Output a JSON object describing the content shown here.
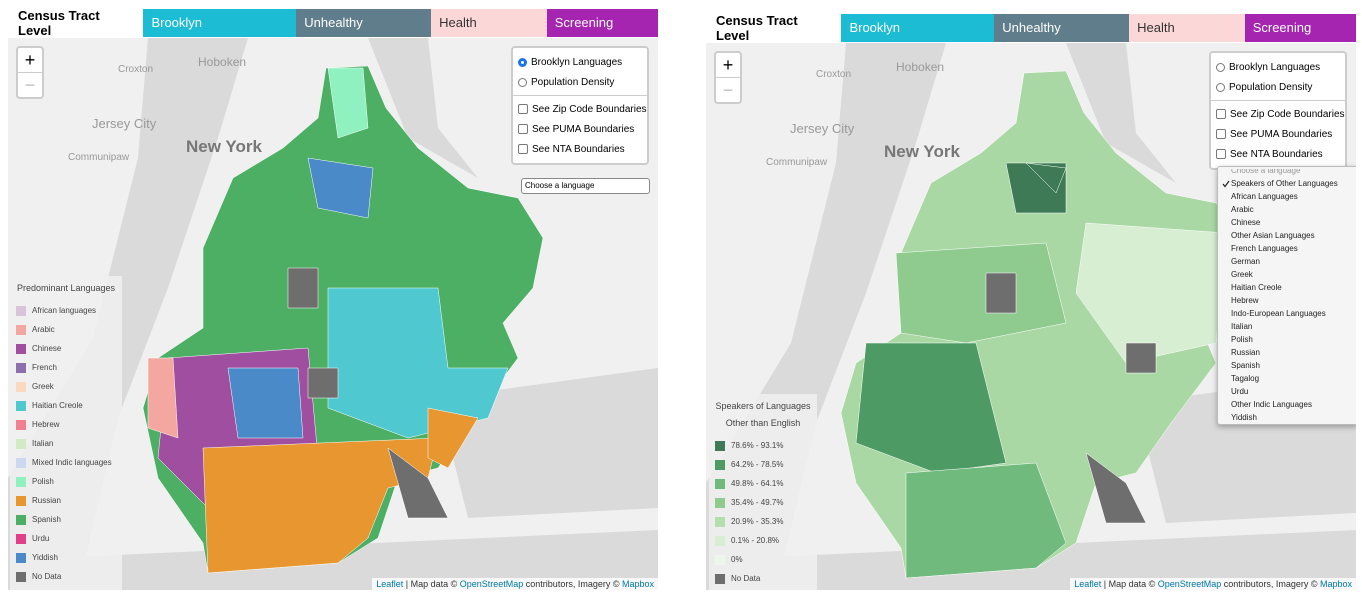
{
  "panels": [
    {
      "title": "Census Tract Level",
      "tabs": [
        {
          "label": "Brooklyn Demographics",
          "color": "#1bbcd4"
        },
        {
          "label": "Unhealthy Behaviors",
          "color": "#5f7d8a"
        },
        {
          "label": "Health Outcomes",
          "color": "#fcd7d7"
        },
        {
          "label": "Screening Rates",
          "color": "#a525b0"
        }
      ],
      "zoom": [
        "+",
        "−"
      ],
      "map_labels": [
        "Hoboken",
        "Croxton",
        "Jersey City",
        "Communipaw",
        "New York"
      ],
      "radios": [
        "Brooklyn Languages",
        "Population Density"
      ],
      "selected_radio": 0,
      "checkboxes": [
        "See Zip Code Boundaries",
        "See PUMA Boundaries",
        "See NTA Boundaries"
      ],
      "select": "Choose a language",
      "legend": {
        "title": [
          "Predominant Languages"
        ],
        "items": [
          {
            "label": "African languages",
            "color": "#d9c3d9"
          },
          {
            "label": "Arabic",
            "color": "#f4a6a0"
          },
          {
            "label": "Chinese",
            "color": "#a04fa0"
          },
          {
            "label": "French",
            "color": "#8e6fae"
          },
          {
            "label": "Greek",
            "color": "#fbd8c0"
          },
          {
            "label": "Haitian Creole",
            "color": "#4fc8d0"
          },
          {
            "label": "Hebrew",
            "color": "#f07f8f"
          },
          {
            "label": "Italian",
            "color": "#d3ebc4"
          },
          {
            "label": "Mixed Indic languages",
            "color": "#cbd8f0"
          },
          {
            "label": "Polish",
            "color": "#8ff0c0"
          },
          {
            "label": "Russian",
            "color": "#e8962f"
          },
          {
            "label": "Spanish",
            "color": "#4caf64"
          },
          {
            "label": "Urdu",
            "color": "#e0408a"
          },
          {
            "label": "Yiddish",
            "color": "#4a8ac8"
          },
          {
            "label": "No Data",
            "color": "#6e6e6e"
          }
        ]
      },
      "attribution": [
        "Leaflet",
        " | Map data © ",
        "OpenStreetMap",
        " contributors, Imagery © ",
        "Mapbox"
      ]
    },
    {
      "title": "Census Tract Level",
      "tabs": [
        {
          "label": "Brooklyn Demographics",
          "color": "#1bbcd4"
        },
        {
          "label": "Unhealthy Behaviors",
          "color": "#5f7d8a"
        },
        {
          "label": "Health Outcomes",
          "color": "#fcd7d7"
        },
        {
          "label": "Screening Rates",
          "color": "#a525b0"
        }
      ],
      "zoom": [
        "+",
        "−"
      ],
      "map_labels": [
        "Hoboken",
        "Croxton",
        "Jersey City",
        "Communipaw",
        "New York"
      ],
      "radios": [
        "Brooklyn Languages",
        "Population Density"
      ],
      "selected_radio": null,
      "checkboxes": [
        "See Zip Code Boundaries",
        "See PUMA Boundaries",
        "See NTA Boundaries"
      ],
      "dropdown": {
        "selected": 1,
        "options": [
          "Choose a language",
          "Speakers of Other Languages",
          "African Languages",
          "Arabic",
          "Chinese",
          "Other Asian Languages",
          "French Languages",
          "German",
          "Greek",
          "Haitian Creole",
          "Hebrew",
          "Indo-European Languages",
          "Italian",
          "Polish",
          "Russian",
          "Spanish",
          "Tagalog",
          "Urdu",
          "Other Indic Languages",
          "Yiddish"
        ]
      },
      "legend": {
        "title": [
          "Speakers of Languages",
          "Other than English"
        ],
        "items": [
          {
            "label": "78.6% - 93.1%",
            "color": "#3d7a55"
          },
          {
            "label": "64.2% - 78.5%",
            "color": "#4e9a64"
          },
          {
            "label": "49.8% - 64.1%",
            "color": "#6fba7c"
          },
          {
            "label": "35.4% - 49.7%",
            "color": "#8fcb8f"
          },
          {
            "label": "20.9% - 35.3%",
            "color": "#b5ddb0"
          },
          {
            "label": "0.1% - 20.8%",
            "color": "#d7eed2"
          },
          {
            "label": "0%",
            "color": "#eef7ec"
          },
          {
            "label": "No Data",
            "color": "#6e6e6e"
          }
        ]
      },
      "attribution": [
        "Leaflet",
        " | Map data © ",
        "OpenStreetMap",
        " contributors, Imagery © ",
        "Mapbox"
      ]
    }
  ]
}
